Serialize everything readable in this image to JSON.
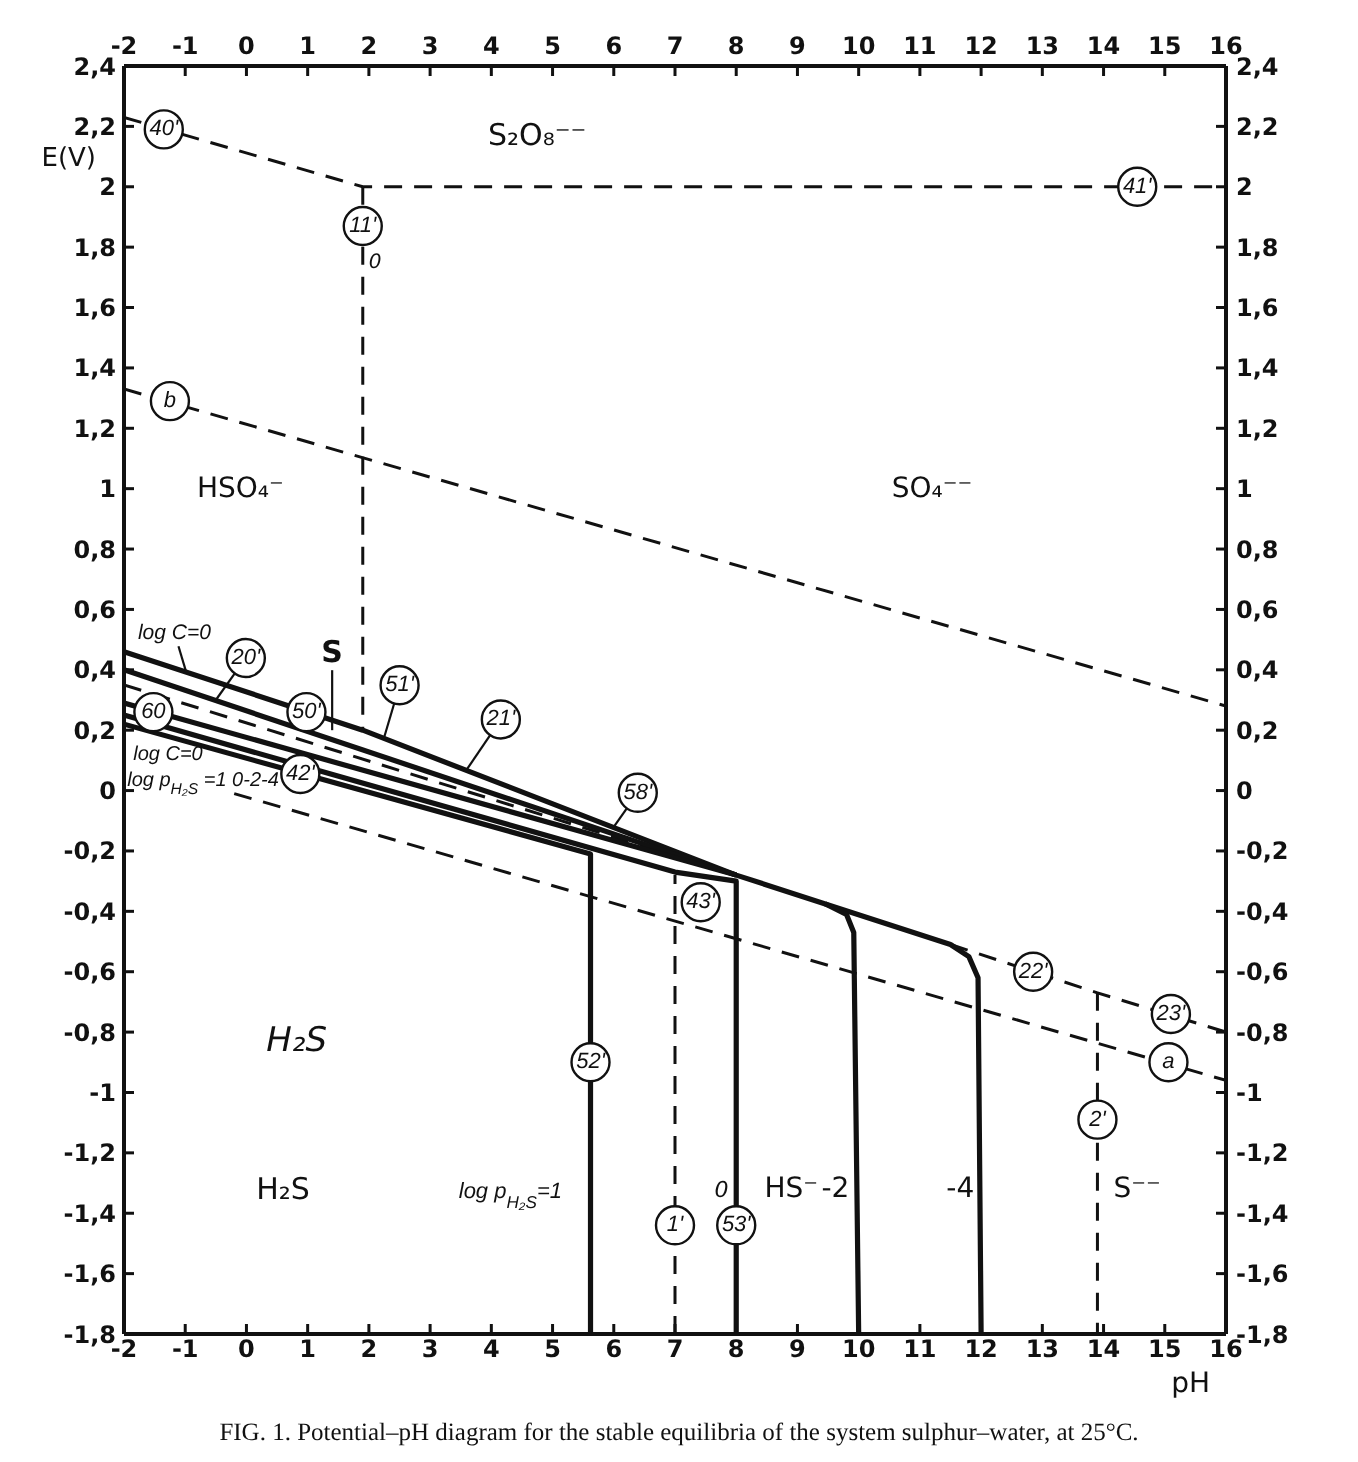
{
  "chart_data": {
    "type": "line",
    "title": "FIG. 1. Potential–pH diagram for the stable equilibria of the system sulphur–water, at 25°C.",
    "xlabel": "pH",
    "ylabel": "E(V)",
    "xlim": [
      -2,
      16
    ],
    "xticks": [
      -2,
      -1,
      0,
      1,
      2,
      3,
      4,
      5,
      6,
      7,
      8,
      9,
      10,
      11,
      12,
      13,
      14,
      15,
      16
    ],
    "x2lim": [
      -2,
      16
    ],
    "x2ticks": [
      -2,
      -1,
      0,
      1,
      2,
      3,
      4,
      5,
      6,
      7,
      8,
      9,
      10,
      11,
      12,
      13,
      14,
      15,
      16
    ],
    "ylim": [
      -1.8,
      2.4
    ],
    "yticks": [
      {
        "value": -1.8,
        "label": "-1,8"
      },
      {
        "value": -1.6,
        "label": "-1,6"
      },
      {
        "value": -1.4,
        "label": "-1,4"
      },
      {
        "value": -1.2,
        "label": "-1,2"
      },
      -1,
      {
        "value": -0.8,
        "label": "-0,8"
      },
      {
        "value": -0.6,
        "label": "-0,6"
      },
      {
        "value": -0.4,
        "label": "-0,4"
      },
      {
        "value": -0.2,
        "label": "-0,2"
      },
      0,
      {
        "value": 0.2,
        "label": "0,2"
      },
      {
        "value": 0.4,
        "label": "0,4"
      },
      {
        "value": 0.6,
        "label": "0,6"
      },
      {
        "value": 0.8,
        "label": "0,8"
      },
      1,
      {
        "value": 1.2,
        "label": "1,2"
      },
      {
        "value": 1.4,
        "label": "1,4"
      },
      {
        "value": 1.6,
        "label": "1,6"
      },
      {
        "value": 1.8,
        "label": "1,8"
      },
      2,
      {
        "value": 2.2,
        "label": "2,2"
      },
      {
        "value": 2.4,
        "label": "2,4"
      }
    ],
    "y2lim": [
      -1.8,
      2.4
    ],
    "y2ticks": [
      {
        "value": -1.8,
        "label": "-1,8"
      },
      {
        "value": -1.6,
        "label": "-1,6"
      },
      {
        "value": -1.4,
        "label": "-1,4"
      },
      {
        "value": -1.2,
        "label": "-1,2"
      },
      -1,
      {
        "value": -0.8,
        "label": "-0,8"
      },
      {
        "value": -0.6,
        "label": "-0,6"
      },
      {
        "value": -0.4,
        "label": "-0,4"
      },
      {
        "value": -0.2,
        "label": "-0,2"
      },
      0,
      {
        "value": 0.2,
        "label": "0,2"
      },
      {
        "value": 0.4,
        "label": "0,4"
      },
      {
        "value": 0.6,
        "label": "0,6"
      },
      {
        "value": 0.8,
        "label": "0,8"
      },
      1,
      {
        "value": 1.2,
        "label": "1,2"
      },
      {
        "value": 1.4,
        "label": "1,4"
      },
      {
        "value": 1.6,
        "label": "1,6"
      },
      {
        "value": 1.8,
        "label": "1,8"
      },
      2,
      {
        "value": 2.2,
        "label": "2,2"
      },
      {
        "value": 2.4,
        "label": "2,4"
      }
    ],
    "series": [
      {
        "color": "#111111",
        "line_style": "dashed",
        "x": [
          -2,
          1.9,
          16
        ],
        "values": [
          2.23,
          2.0,
          2.0
        ]
      },
      {
        "color": "#111111",
        "line_style": "dashed",
        "x": [
          1.9,
          1.9
        ],
        "values": [
          2.0,
          0.2
        ]
      },
      {
        "color": "#111111",
        "line_style": "dashed",
        "x": [
          -2,
          16
        ],
        "values": [
          1.33,
          0.28
        ]
      },
      {
        "color": "#111111",
        "line_style": "dashed",
        "x": [
          -0.2,
          16
        ],
        "values": [
          -0.01,
          -0.96
        ]
      },
      {
        "color": "#111111",
        "line_style": "solid",
        "x": [
          -2,
          1.9,
          8,
          11.5,
          11.8,
          11.95,
          12
        ],
        "values": [
          0.46,
          0.2,
          -0.28,
          -0.51,
          -0.55,
          -0.62,
          -1.8
        ]
      },
      {
        "color": "#111111",
        "line_style": "dashed",
        "x": [
          -2,
          8
        ],
        "values": [
          0.35,
          -0.28
        ]
      },
      {
        "color": "#111111",
        "line_style": "solid",
        "x": [
          -2,
          8
        ],
        "values": [
          0.4,
          -0.28
        ]
      },
      {
        "color": "#111111",
        "line_style": "solid",
        "x": [
          -2,
          8
        ],
        "values": [
          0.29,
          -0.28
        ]
      },
      {
        "color": "#111111",
        "line_style": "solid",
        "x": [
          -2,
          7,
          8,
          8
        ],
        "values": [
          0.25,
          -0.27,
          -0.3,
          -1.8
        ]
      },
      {
        "color": "#111111",
        "line_style": "solid",
        "x": [
          -2,
          5.62,
          5.62
        ],
        "values": [
          0.22,
          -0.21,
          -1.8
        ]
      },
      {
        "color": "#111111",
        "line_style": "solid",
        "x": [
          9.45,
          9.8,
          9.92,
          10
        ],
        "values": [
          -0.375,
          -0.41,
          -0.47,
          -1.8
        ]
      },
      {
        "color": "#111111",
        "line_style": "dashed",
        "x": [
          11.5,
          13.9,
          16
        ],
        "values": [
          -0.51,
          -0.67,
          -0.8
        ]
      },
      {
        "color": "#111111",
        "line_style": "dashed",
        "x": [
          7,
          7
        ],
        "values": [
          -1.8,
          -0.28
        ]
      },
      {
        "color": "#111111",
        "line_style": "dashed",
        "x": [
          13.9,
          13.9
        ],
        "values": [
          -0.67,
          -1.8
        ]
      }
    ],
    "annotations": [
      {
        "text": "40'",
        "x": -1.35,
        "y": 2.19
      },
      {
        "text": "11'",
        "x": 1.9,
        "y": 1.87
      },
      {
        "text": "41'",
        "x": 14.55,
        "y": 2.0
      },
      {
        "text": "b",
        "x": -1.25,
        "y": 1.29
      },
      {
        "text": "20'",
        "x": -0.5,
        "y": 0.3
      },
      {
        "text": "50'",
        "x": 0.98,
        "y": 0.26
      },
      {
        "text": "51'",
        "x": 2.24,
        "y": 0.17
      },
      {
        "text": "21'",
        "x": 3.6,
        "y": 0.07
      },
      {
        "text": "58'",
        "x": 6.0,
        "y": -0.12
      },
      {
        "text": "60",
        "x": -1.52,
        "y": 0.26
      },
      {
        "text": "42'",
        "x": 0.88,
        "y": 0.055
      },
      {
        "text": "43'",
        "x": 7.42,
        "y": -0.37
      },
      {
        "text": "22'",
        "x": 12.85,
        "y": -0.6
      },
      {
        "text": "23'",
        "x": 15.1,
        "y": -0.74
      },
      {
        "text": "a",
        "x": 15.06,
        "y": -0.9
      },
      {
        "text": "2'",
        "x": 13.9,
        "y": -1.09
      },
      {
        "text": "52'",
        "x": 5.62,
        "y": -0.9
      },
      {
        "text": "1'",
        "x": 7,
        "y": -1.44
      },
      {
        "text": "53'",
        "x": 8,
        "y": -1.44
      },
      {
        "text": "log C=0",
        "x": -0.98,
        "y": 0.39
      },
      {
        "text": "S",
        "x": 1.4,
        "y": 0.2
      },
      "0",
      "S₂O₈⁻⁻",
      "HSO₄⁻",
      "SO₄⁻⁻",
      "log C=0",
      "log p$_{H₂S}$ =1 0-2-4",
      "H₂S",
      "H₂S",
      "log p$_{H₂S}$=1",
      "0",
      "HS⁻",
      "-2",
      "-4",
      "S⁻⁻"
    ]
  }
}
